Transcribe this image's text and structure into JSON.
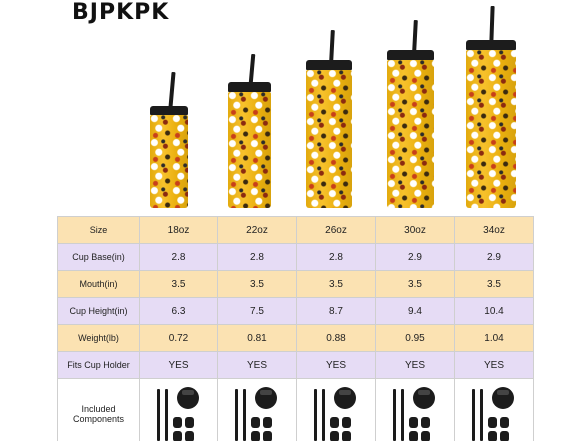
{
  "brand": "BJPKPK",
  "table": {
    "labels": {
      "size": "Size",
      "cup_base": "Cup Base(in)",
      "mouth": "Mouth(in)",
      "cup_height": "Cup Height(in)",
      "weight": "Weight(lb)",
      "fits_cup_holder": "Fits Cup Holder",
      "included_components": "Included Components"
    },
    "sizes": [
      "18oz",
      "22oz",
      "26oz",
      "30oz",
      "34oz"
    ],
    "cup_base": [
      "2.8",
      "2.8",
      "2.8",
      "2.9",
      "2.9"
    ],
    "mouth": [
      "3.5",
      "3.5",
      "3.5",
      "3.5",
      "3.5"
    ],
    "cup_height": [
      "6.3",
      "7.5",
      "8.7",
      "9.4",
      "10.4"
    ],
    "weight": [
      "0.72",
      "0.81",
      "0.88",
      "0.95",
      "1.04"
    ],
    "fits_cup_holder": [
      "YES",
      "YES",
      "YES",
      "YES",
      "YES"
    ]
  },
  "colors": {
    "cup_yellow": "#f6b90f",
    "lid_black": "#1c1c1c",
    "row_orange": "#fbe2b2",
    "row_purple": "#e6dcf5"
  }
}
